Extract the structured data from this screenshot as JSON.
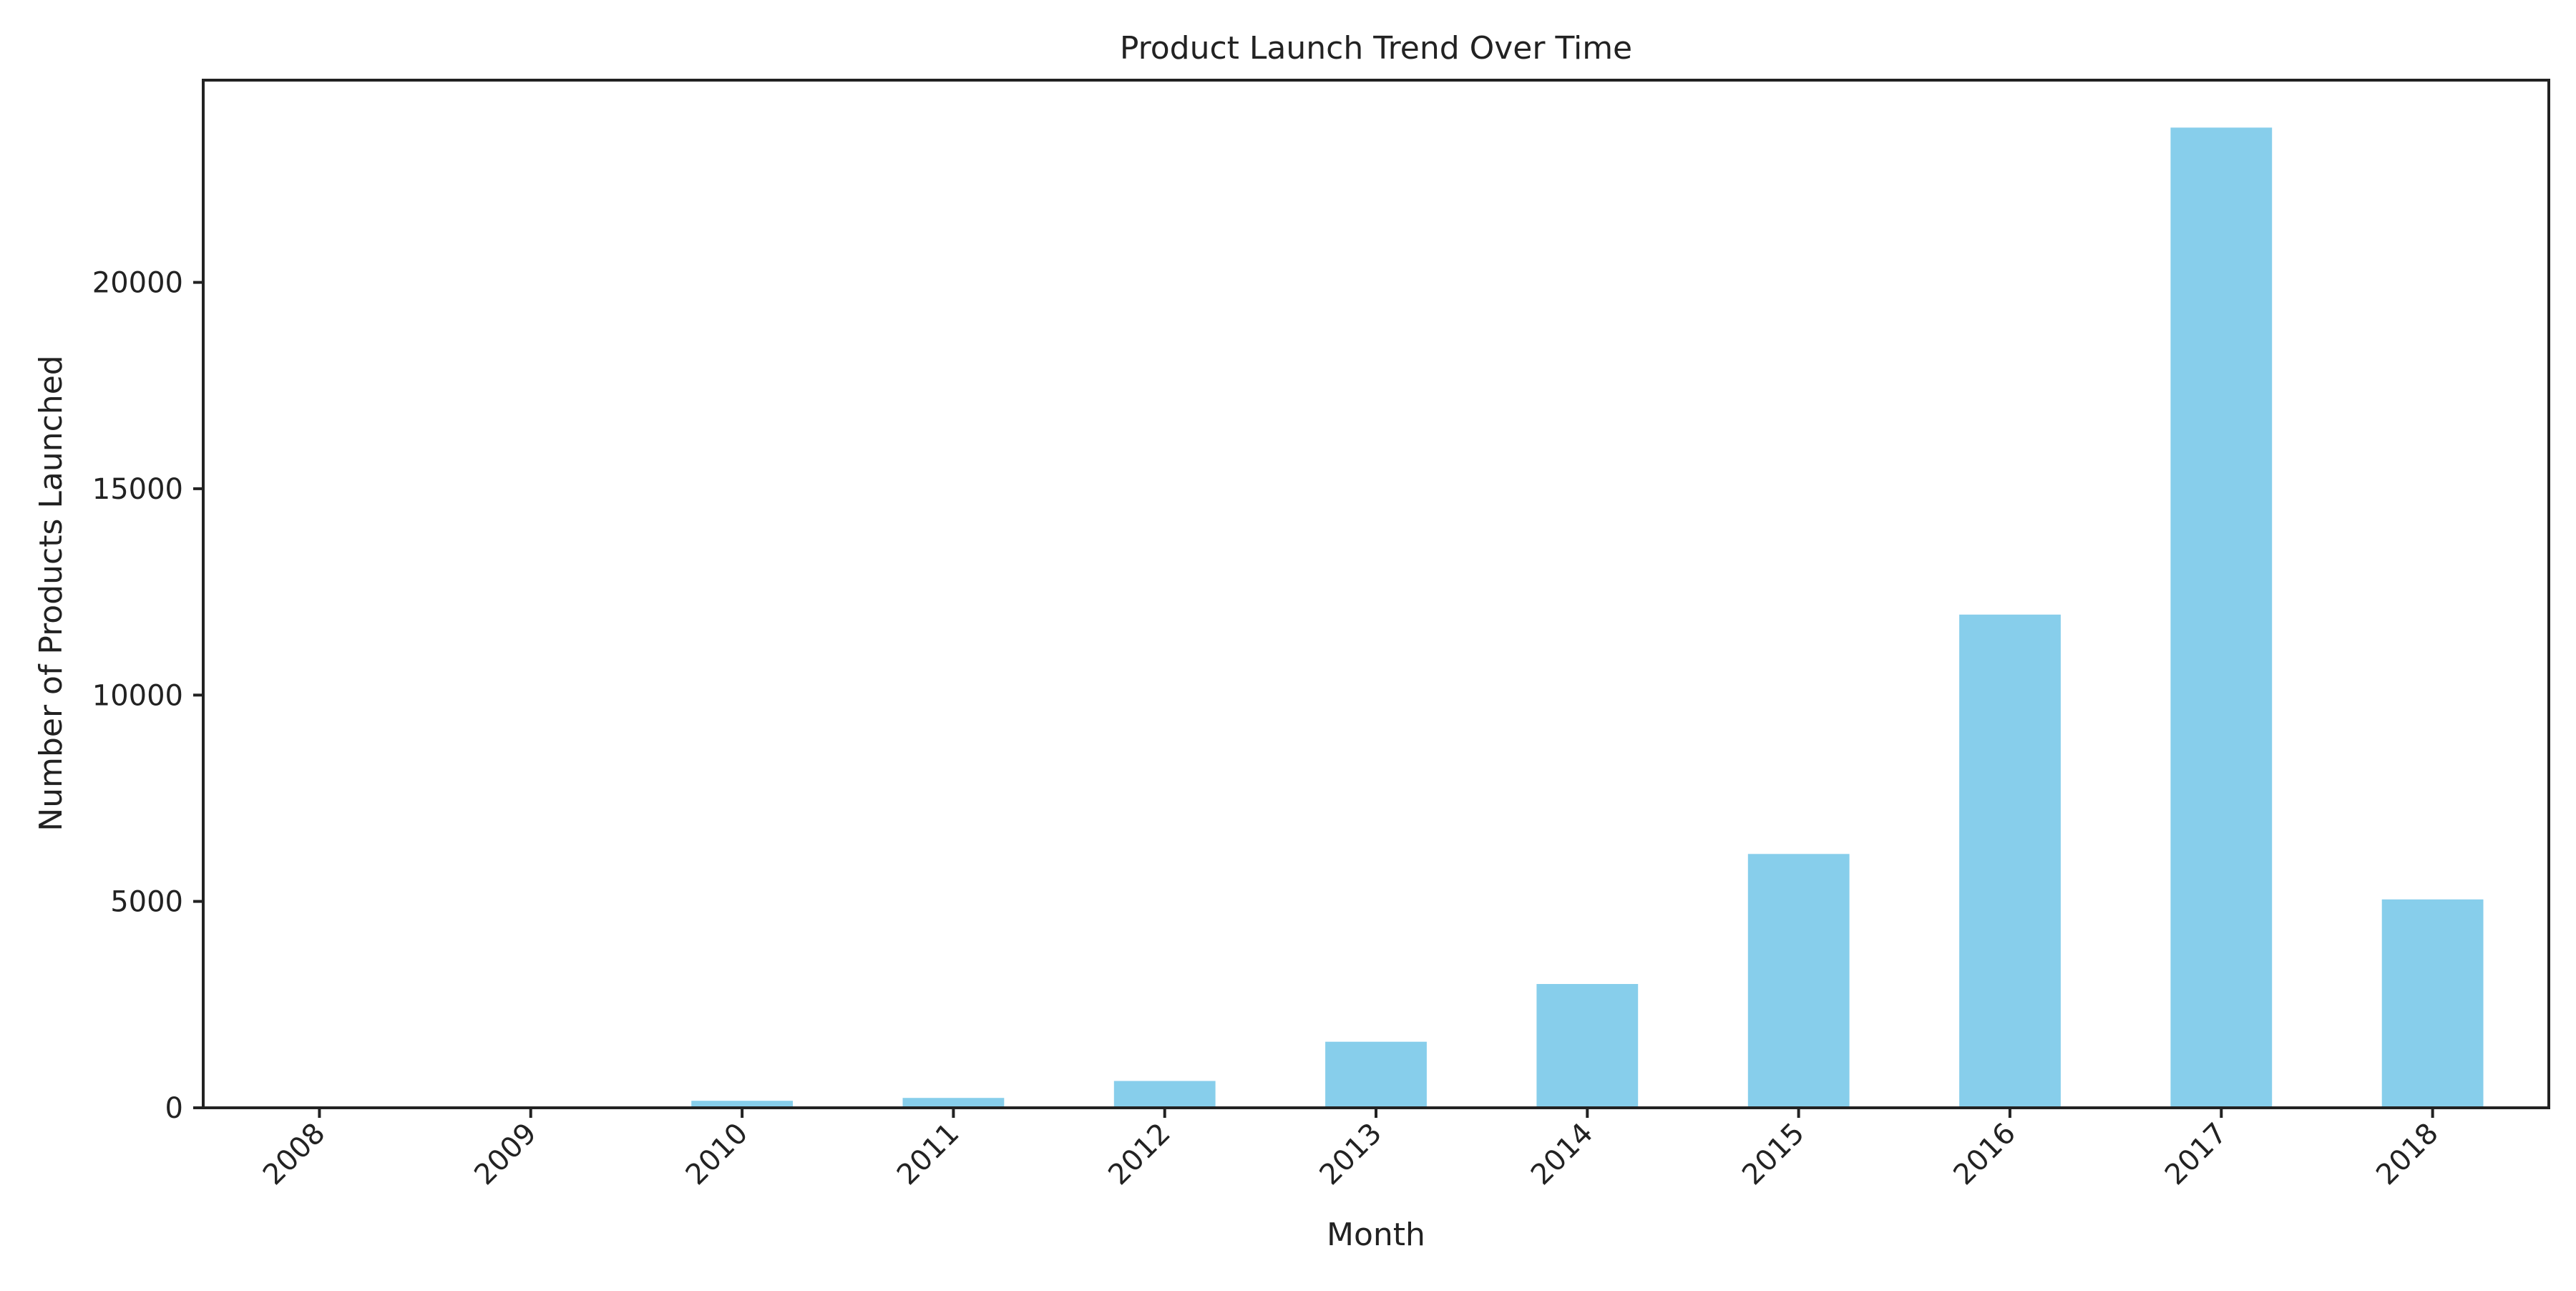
{
  "chart_data": {
    "type": "bar",
    "title": "Product Launch Trend Over Time",
    "xlabel": "Month",
    "ylabel": "Number of Products Launched",
    "categories": [
      "2008",
      "2009",
      "2010",
      "2011",
      "2012",
      "2013",
      "2014",
      "2015",
      "2016",
      "2017",
      "2018"
    ],
    "values": [
      5,
      10,
      170,
      240,
      650,
      1600,
      3000,
      6150,
      11950,
      23750,
      5050
    ],
    "ylim": [
      0,
      24900
    ],
    "yticks": [
      0,
      5000,
      10000,
      15000,
      20000
    ],
    "grid": false,
    "legend": "none",
    "colors": {
      "bar": "#87CEEB",
      "axis": "#222222"
    }
  }
}
